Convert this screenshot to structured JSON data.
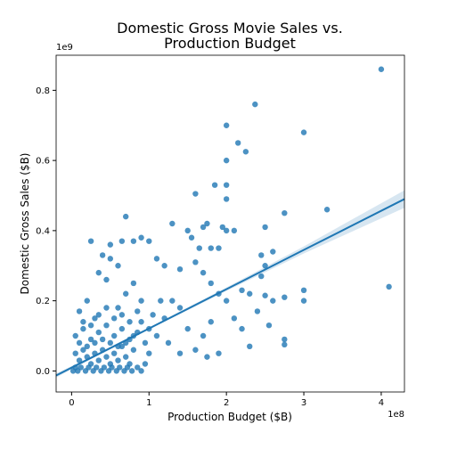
{
  "chart_data": {
    "type": "scatter",
    "title": [
      "Domestic Gross Movie Sales vs.",
      "Production Budget"
    ],
    "x_label": "Production Budget ($B)",
    "y_label": "Domestic Gross Sales ($B)",
    "x_offset_label": "1e8",
    "y_offset_label": "1e9",
    "xlim": [
      -0.2,
      4.3
    ],
    "ylim": [
      -0.06,
      0.9
    ],
    "xticks": [
      0,
      1,
      2,
      3,
      4
    ],
    "yticks": [
      {
        "value": 0,
        "label": "0.0"
      },
      0.2,
      0.4,
      0.6,
      0.8
    ],
    "grid": false,
    "color": "#1f77b4",
    "series": [
      {
        "x": [
          4.0,
          2.37,
          2.0,
          2.15,
          3.0,
          2.25,
          2.0,
          1.85,
          2.0,
          1.6,
          2.0,
          3.3,
          2.75,
          0.7,
          4.1,
          2.5,
          2.6,
          2.45,
          2.5,
          2.45,
          3.0,
          3.0,
          2.75,
          2.75,
          2.75,
          2.6,
          2.5,
          0.25,
          1.3,
          1.75,
          1.5,
          1.7,
          1.95,
          2.0,
          2.1,
          1.9,
          1.8,
          1.65,
          1.55,
          0.5,
          0.65,
          0.8,
          0.9,
          1.0,
          0.4,
          0.5,
          0.6,
          0.35,
          0.45,
          1.1,
          1.2,
          1.4,
          1.6,
          1.7,
          1.8,
          1.9,
          2.2,
          2.3,
          2.0,
          2.1,
          2.2,
          2.4,
          2.55,
          2.3,
          1.8,
          1.7,
          1.6,
          1.75,
          1.9,
          1.5,
          1.4,
          1.3,
          1.2,
          1.1,
          1.0,
          1.25,
          1.4,
          0.9,
          0.8,
          0.7,
          0.6,
          0.2,
          0.3,
          0.1,
          0.05,
          0.15,
          0.25,
          0.35,
          0.45,
          0.55,
          0.65,
          0.75,
          0.85,
          0.95,
          0.05,
          0.1,
          0.15,
          0.2,
          0.25,
          0.3,
          0.35,
          0.4,
          0.45,
          0.5,
          0.55,
          0.6,
          0.65,
          0.7,
          0.75,
          0.8,
          0.02,
          0.05,
          0.08,
          0.12,
          0.18,
          0.22,
          0.28,
          0.32,
          0.38,
          0.42,
          0.48,
          0.52,
          0.58,
          0.62,
          0.68,
          0.72,
          0.78,
          0.85,
          0.9,
          0.95,
          0.1,
          0.2,
          0.3,
          0.4,
          0.5,
          0.6,
          0.7,
          0.8,
          0.9,
          1.0,
          0.15,
          0.25,
          0.35,
          0.45,
          0.55,
          0.65,
          0.75,
          0.85,
          1.05,
          1.15
        ],
        "y": [
          0.86,
          0.76,
          0.7,
          0.65,
          0.68,
          0.625,
          0.6,
          0.53,
          0.53,
          0.505,
          0.49,
          0.46,
          0.45,
          0.44,
          0.24,
          0.41,
          0.34,
          0.33,
          0.3,
          0.27,
          0.23,
          0.2,
          0.21,
          0.09,
          0.075,
          0.2,
          0.215,
          0.37,
          0.42,
          0.42,
          0.4,
          0.41,
          0.41,
          0.4,
          0.4,
          0.35,
          0.35,
          0.35,
          0.38,
          0.36,
          0.37,
          0.37,
          0.38,
          0.37,
          0.33,
          0.32,
          0.3,
          0.28,
          0.26,
          0.32,
          0.3,
          0.29,
          0.31,
          0.28,
          0.25,
          0.22,
          0.23,
          0.22,
          0.2,
          0.15,
          0.12,
          0.17,
          0.13,
          0.07,
          0.14,
          0.1,
          0.06,
          0.04,
          0.05,
          0.12,
          0.18,
          0.2,
          0.15,
          0.1,
          0.05,
          0.08,
          0.05,
          0.2,
          0.25,
          0.22,
          0.18,
          0.2,
          0.15,
          0.17,
          0.1,
          0.12,
          0.09,
          0.11,
          0.13,
          0.1,
          0.12,
          0.09,
          0.11,
          0.08,
          0.05,
          0.03,
          0.06,
          0.04,
          0.02,
          0.05,
          0.03,
          0.06,
          0.04,
          0.02,
          0.05,
          0.03,
          0.07,
          0.04,
          0.02,
          0.06,
          0,
          0.01,
          0,
          0.01,
          0,
          0.01,
          0,
          0.01,
          0,
          0.01,
          0,
          0.01,
          0,
          0.01,
          0,
          0.01,
          0,
          0.01,
          0,
          0.02,
          0.08,
          0.07,
          0.08,
          0.09,
          0.08,
          0.07,
          0.08,
          0.1,
          0.14,
          0.12,
          0.14,
          0.13,
          0.16,
          0.18,
          0.15,
          0.16,
          0.14,
          0.17,
          0.16,
          0.2
        ]
      }
    ],
    "fit": {
      "x": [
        -0.2,
        0,
        1,
        2,
        3,
        4.3
      ],
      "y": [
        -0.013,
        0.0094,
        0.121,
        0.233,
        0.345,
        0.49
      ],
      "lower": [
        -0.019,
        0.005,
        0.118,
        0.228,
        0.335,
        0.465
      ],
      "upper": [
        -0.007,
        0.014,
        0.124,
        0.238,
        0.355,
        0.515
      ]
    }
  }
}
